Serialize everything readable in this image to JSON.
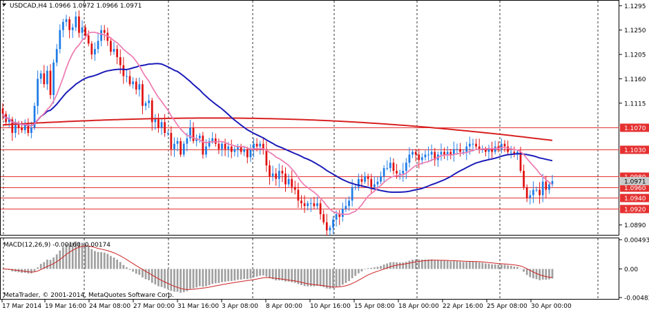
{
  "window": {
    "header": "USDCAD,H4  1.0966 1.0972 1.0966 1.0971",
    "copyright": "MetaTrader, © 2001-2014, MetaQuotes Software Corp."
  },
  "macd": {
    "header": "MACD(12,26,9) -0.00160 -0.00174",
    "axis": [
      "0.00493",
      "0.00",
      "-0.00482"
    ]
  },
  "colors": {
    "bull": "#1e7ce6",
    "bear": "#e01010",
    "ma_fast": "#ee7fb3",
    "ma_mid": "#1a1ab8",
    "ma_slow": "#d82020",
    "hline": "#e53030",
    "current_price_bg": "#c8c8c8",
    "macd_hist": "#a0a0a0",
    "macd_signal": "#cc2020"
  },
  "chart_data": {
    "type": "candlestick",
    "symbol": "USDCAD",
    "timeframe": "H4",
    "price_axis": [
      "1.1295",
      "1.1250",
      "1.1205",
      "1.1160",
      "1.1115",
      "1.1070",
      "1.1030",
      "1.0980",
      "1.0960",
      "1.0940",
      "1.0920",
      "1.0890"
    ],
    "ylim": [
      1.0873,
      1.1303
    ],
    "time_axis": [
      "17 Mar 2014",
      "19 Mar 16:00",
      "24 Mar 08:00",
      "27 Mar 00:00",
      "31 Mar 16:00",
      "3 Apr 08:00",
      "8 Apr 00:00",
      "10 Apr 16:00",
      "15 Apr 08:00",
      "18 Apr 00:00",
      "22 Apr 16:00",
      "25 Apr 08:00",
      "30 Apr 00:00"
    ],
    "horizontal_levels": [
      {
        "label": "1.1070",
        "value": 1.107
      },
      {
        "label": "1.1030",
        "value": 1.103
      },
      {
        "label": "1.0980",
        "value": 1.098
      },
      {
        "label": "1.0960",
        "value": 1.096
      },
      {
        "label": "1.0940",
        "value": 1.094
      },
      {
        "label": "1.0920",
        "value": 1.092
      }
    ],
    "current_price": 1.0971,
    "series": [
      {
        "values": [
          1.1095,
          1.108,
          1.1085,
          1.106,
          1.1075,
          1.107,
          1.1065,
          1.1075,
          1.106,
          1.107,
          1.111,
          1.116,
          1.117,
          1.115,
          1.1175,
          1.113,
          1.119,
          1.1215,
          1.125,
          1.1265,
          1.127,
          1.125,
          1.1255,
          1.1275,
          1.1245,
          1.1255,
          1.124,
          1.1225,
          1.1205,
          1.1215,
          1.123,
          1.125,
          1.1245,
          1.123,
          1.121,
          1.1215,
          1.12,
          1.1185,
          1.1165,
          1.1165,
          1.115,
          1.1155,
          1.114,
          1.115,
          1.111,
          1.1115,
          1.112,
          1.108,
          1.1085,
          1.107,
          1.108,
          1.106,
          1.106,
          1.103,
          1.104,
          1.1045,
          1.102,
          1.104,
          1.105,
          1.107,
          1.1045,
          1.105,
          1.1055,
          1.102,
          1.1035,
          1.1045,
          1.105,
          1.104,
          1.103,
          1.104,
          1.103,
          1.1035,
          1.1025,
          1.103,
          1.1035,
          1.1025,
          1.103,
          1.1015,
          1.103,
          1.104,
          1.1035,
          1.104,
          1.103,
          1.1,
          1.098,
          1.0985,
          1.0975,
          1.099,
          1.0985,
          1.0965,
          1.0975,
          1.096,
          1.0955,
          1.0935,
          1.093,
          1.0925,
          1.093,
          1.093,
          1.0925,
          1.093,
          1.091,
          1.0895,
          1.088,
          1.0885,
          1.09,
          1.091,
          1.0905,
          1.092,
          1.0925,
          1.0935,
          1.096,
          1.096,
          1.0975,
          1.097,
          1.098,
          1.0975,
          1.096,
          1.0965,
          1.097,
          1.098,
          1.0995,
          1.0995,
          1.1005,
          1.099,
          1.0985,
          1.0985,
          1.099,
          1.1005,
          1.102,
          1.1025,
          1.102,
          1.101,
          1.1015,
          1.102,
          1.102,
          1.1025,
          1.101,
          1.102,
          1.1025,
          1.102,
          1.1025,
          1.102,
          1.103,
          1.103,
          1.1025,
          1.1025,
          1.1035,
          1.104,
          1.104,
          1.1035,
          1.103,
          1.103,
          1.1025,
          1.103,
          1.1025,
          1.1035,
          1.103,
          1.104,
          1.1035,
          1.1025,
          1.1025,
          1.102,
          1.1025,
          1.099,
          1.096,
          1.094,
          1.0945,
          1.0955,
          1.0955,
          1.0945,
          1.097,
          1.0955,
          1.0965,
          1.0971
        ]
      }
    ],
    "macd_histogram_ylim": [
      -0.00482,
      0.00493
    ]
  }
}
